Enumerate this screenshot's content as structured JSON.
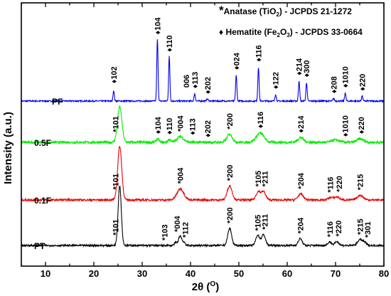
{
  "chart_data": {
    "type": "line",
    "xlabel": "2θ (",
    "xlabel_unit": "O",
    "xlabel_close": ")",
    "ylabel": "Intensity (a.u.)",
    "xlim": [
      5,
      80
    ],
    "xticks": [
      10,
      20,
      30,
      40,
      50,
      60,
      70,
      80
    ],
    "grid": false,
    "legend": [
      {
        "marker": "*",
        "text": "Anatase (TiO",
        "sub": "2",
        "text2": ") - JCPDS 21-1272"
      },
      {
        "marker": "♦",
        "text": "Hematite (Fe",
        "sub": "2",
        "text2": "O",
        "sub2": "3",
        "text3": ") - JCPDS  33-0664"
      }
    ],
    "series": [
      {
        "name": "PF",
        "color": "#0000ee",
        "noise": 1.1,
        "peaks": [
          [
            24.1,
            17,
            0.13
          ],
          [
            33.15,
            100,
            0.13
          ],
          [
            35.6,
            72,
            0.13
          ],
          [
            40.85,
            12,
            0.13
          ],
          [
            43.5,
            3,
            0.2
          ],
          [
            49.45,
            42,
            0.13
          ],
          [
            54.05,
            55,
            0.13
          ],
          [
            57.6,
            11,
            0.13
          ],
          [
            62.45,
            33,
            0.13
          ],
          [
            64.0,
            30,
            0.13
          ],
          [
            69.6,
            4,
            0.15
          ],
          [
            72.0,
            13,
            0.13
          ],
          [
            75.5,
            8,
            0.13
          ]
        ],
        "labels": [
          {
            "x": 24.1,
            "y": 25,
            "text": "♦102"
          },
          {
            "x": 33.15,
            "y": 104,
            "text": "♦104"
          },
          {
            "x": 35.6,
            "y": 76,
            "text": "♦110"
          },
          {
            "x": 39.1,
            "y": 18,
            "text": "006"
          },
          {
            "x": 40.85,
            "y": 17,
            "text": "♦113"
          },
          {
            "x": 43.5,
            "y": 8,
            "text": "♦202"
          },
          {
            "x": 49.45,
            "y": 47,
            "text": "♦024"
          },
          {
            "x": 54.05,
            "y": 60,
            "text": "♦116"
          },
          {
            "x": 57.6,
            "y": 16,
            "text": "♦122"
          },
          {
            "x": 62.45,
            "y": 38,
            "text": "♦214"
          },
          {
            "x": 64.0,
            "y": 35,
            "text": "♦300"
          },
          {
            "x": 69.6,
            "y": 9,
            "text": "♦208"
          },
          {
            "x": 72.0,
            "y": 18,
            "text": "♦1010"
          },
          {
            "x": 75.5,
            "y": 13,
            "text": "♦220"
          }
        ]
      },
      {
        "name": "0.5F",
        "color": "#00ee00",
        "noise": 2.2,
        "peaks": [
          [
            25.35,
            62,
            0.45
          ],
          [
            33.2,
            6,
            0.3
          ],
          [
            35.6,
            5,
            0.3
          ],
          [
            37.9,
            10,
            0.7
          ],
          [
            48.1,
            14,
            0.55
          ],
          [
            54.4,
            16,
            0.8
          ],
          [
            62.8,
            8,
            0.6
          ],
          [
            70.0,
            4,
            0.8
          ],
          [
            75.1,
            6,
            0.7
          ]
        ],
        "labels": [
          {
            "x": 24.5,
            "y": 14,
            "text": "*101"
          },
          {
            "x": 33.2,
            "y": 11,
            "text": "♦104"
          },
          {
            "x": 35.6,
            "y": 10,
            "text": "♦110"
          },
          {
            "x": 37.9,
            "y": 15,
            "text": "*004"
          },
          {
            "x": 40.4,
            "y": 9,
            "text": "♦113"
          },
          {
            "x": 43.5,
            "y": 5,
            "text": "♦202"
          },
          {
            "x": 48.1,
            "y": 19,
            "text": "*200"
          },
          {
            "x": 54.4,
            "y": 21,
            "text": "♦116"
          },
          {
            "x": 62.8,
            "y": 13,
            "text": "♦214"
          },
          {
            "x": 72.0,
            "y": 6,
            "text": "♦1010"
          },
          {
            "x": 75.3,
            "y": 11,
            "text": "♦220"
          }
        ]
      },
      {
        "name": "0.1F",
        "color": "#ee0000",
        "noise": 1.7,
        "peaks": [
          [
            25.35,
            92,
            0.42
          ],
          [
            37.9,
            19,
            0.7
          ],
          [
            48.1,
            24,
            0.5
          ],
          [
            54.0,
            14,
            0.45
          ],
          [
            55.1,
            14,
            0.45
          ],
          [
            62.8,
            10,
            0.55
          ],
          [
            69.0,
            4,
            0.5
          ],
          [
            70.3,
            5,
            0.5
          ],
          [
            75.1,
            8,
            0.6
          ]
        ],
        "labels": [
          {
            "x": 24.5,
            "y": 14,
            "text": "*101"
          },
          {
            "x": 37.9,
            "y": 24,
            "text": "*004"
          },
          {
            "x": 48.1,
            "y": 29,
            "text": "*200"
          },
          {
            "x": 54.0,
            "y": 19,
            "text": "*105"
          },
          {
            "x": 55.4,
            "y": 19,
            "text": "*211"
          },
          {
            "x": 62.8,
            "y": 15,
            "text": "*204"
          },
          {
            "x": 68.9,
            "y": 9,
            "text": "*116"
          },
          {
            "x": 70.7,
            "y": 10,
            "text": "*220"
          },
          {
            "x": 75.1,
            "y": 13,
            "text": "*215"
          }
        ]
      },
      {
        "name": "PT",
        "color": "#000000",
        "noise": 1.6,
        "peaks": [
          [
            25.35,
            105,
            0.33
          ],
          [
            36.95,
            5,
            0.3
          ],
          [
            37.85,
            17,
            0.3
          ],
          [
            38.6,
            6,
            0.3
          ],
          [
            48.1,
            30,
            0.4
          ],
          [
            53.9,
            18,
            0.4
          ],
          [
            55.1,
            19,
            0.4
          ],
          [
            62.7,
            12,
            0.4
          ],
          [
            68.8,
            6,
            0.4
          ],
          [
            70.3,
            7,
            0.4
          ],
          [
            75.05,
            10,
            0.5
          ],
          [
            76.0,
            5,
            0.4
          ]
        ],
        "labels": [
          {
            "x": 24.5,
            "y": 14,
            "text": "*101"
          },
          {
            "x": 34.6,
            "y": 5,
            "text": "*103"
          },
          {
            "x": 37.2,
            "y": 20,
            "text": "*004"
          },
          {
            "x": 38.9,
            "y": 10,
            "text": "*112"
          },
          {
            "x": 48.1,
            "y": 35,
            "text": "*200"
          },
          {
            "x": 53.9,
            "y": 22,
            "text": "*105"
          },
          {
            "x": 55.4,
            "y": 24,
            "text": "*211"
          },
          {
            "x": 62.7,
            "y": 17,
            "text": "*204"
          },
          {
            "x": 68.8,
            "y": 11,
            "text": "*116"
          },
          {
            "x": 70.6,
            "y": 12,
            "text": "*220"
          },
          {
            "x": 75.05,
            "y": 15,
            "text": "*215"
          },
          {
            "x": 76.6,
            "y": 10,
            "text": "*301"
          }
        ]
      }
    ]
  }
}
